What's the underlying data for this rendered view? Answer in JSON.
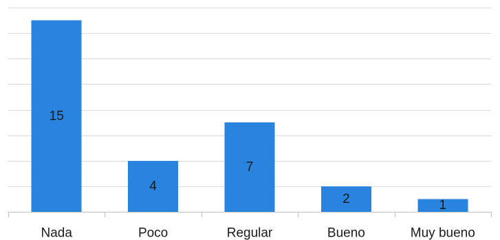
{
  "chart_data": {
    "type": "bar",
    "categories": [
      "Nada",
      "Poco",
      "Regular",
      "Bueno",
      "Muy bueno"
    ],
    "values": [
      15,
      4,
      7,
      2,
      1
    ],
    "data_labels": [
      "15",
      "4",
      "7",
      "2",
      "1"
    ],
    "ylim": [
      0,
      16
    ],
    "y_grid_step": 2,
    "grid": true,
    "bar_color": "#2984e0"
  }
}
